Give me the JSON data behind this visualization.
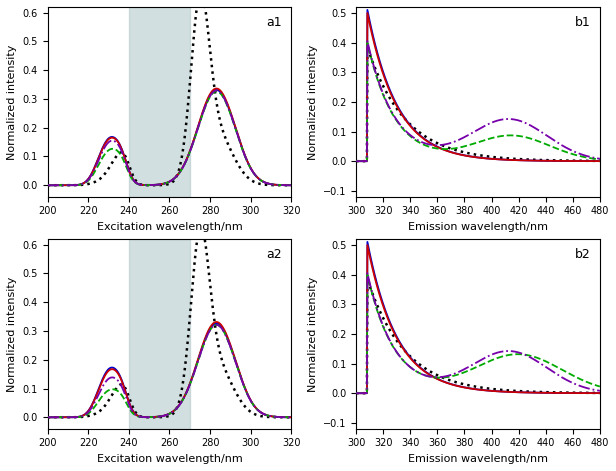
{
  "shaded_region": [
    240,
    270
  ],
  "shaded_color": "#aec6c8",
  "shaded_alpha": 0.55,
  "subplot_labels": [
    "a1",
    "b1",
    "a2",
    "b2"
  ],
  "excitation_xlim": [
    200,
    320
  ],
  "excitation_ylim": [
    -0.04,
    0.62
  ],
  "emission_xlim": [
    300,
    480
  ],
  "emission_ylim": [
    -0.12,
    0.52
  ],
  "excitation_xlabel": "Excitation wavelength/nm",
  "emission_xlabel": "Emission wavelength/nm",
  "ylabel": "Normalized intensity",
  "colors": {
    "black_dotted": "#000000",
    "blue_solid": "#0000cc",
    "red_solid": "#cc0000",
    "green_dashed": "#00aa00",
    "purple_dashdot": "#7700aa"
  }
}
